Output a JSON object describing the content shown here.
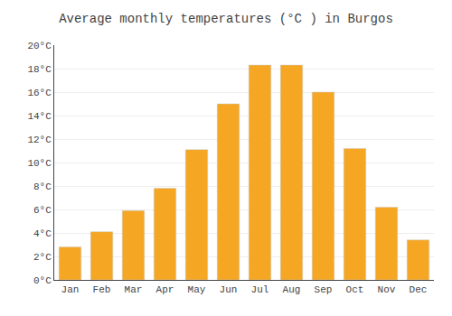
{
  "chart_data": {
    "type": "bar",
    "title": "Average monthly temperatures (°C ) in Burgos",
    "categories": [
      "Jan",
      "Feb",
      "Mar",
      "Apr",
      "May",
      "Jun",
      "Jul",
      "Aug",
      "Sep",
      "Oct",
      "Nov",
      "Dec"
    ],
    "values": [
      2.8,
      4.1,
      5.9,
      7.8,
      11.1,
      15.0,
      18.3,
      18.3,
      16.0,
      11.2,
      6.2,
      3.4
    ],
    "color": "#F5A623",
    "ylim": [
      0,
      20
    ],
    "yticks": [
      {
        "value": 0,
        "label": "0°C"
      },
      {
        "value": 2,
        "label": "2°C"
      },
      {
        "value": 4,
        "label": "4°C"
      },
      {
        "value": 6,
        "label": "6°C"
      },
      {
        "value": 8,
        "label": "8°C"
      },
      {
        "value": 10,
        "label": "10°C"
      },
      {
        "value": 12,
        "label": "12°C"
      },
      {
        "value": 14,
        "label": "14°C"
      },
      {
        "value": 16,
        "label": "16°C"
      },
      {
        "value": 18,
        "label": "18°C"
      },
      {
        "value": 20,
        "label": "20°C"
      }
    ],
    "grid": true
  }
}
